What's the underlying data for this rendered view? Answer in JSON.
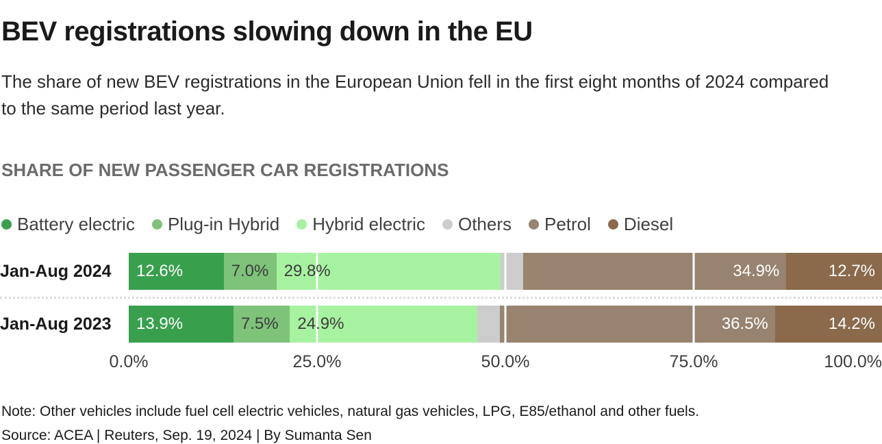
{
  "page": {
    "title": "BEV registrations slowing down in the EU",
    "subtitle": "The share of new BEV registrations in the European Union fell in the first eight months of 2024 compared to the same period last year.",
    "section_header": "SHARE OF NEW PASSENGER CAR REGISTRATIONS",
    "note": "Note: Other vehicles include fuel cell electric vehicles, natural gas vehicles, LPG, E85/ethanol and other fuels.",
    "source": "Source: ACEA | Reuters, Sep. 19, 2024 | By Sumanta Sen"
  },
  "chart_data": {
    "type": "bar",
    "variant": "horizontal-stacked",
    "unit": "%",
    "title": "SHARE OF NEW PASSENGER CAR REGISTRATIONS",
    "categories": [
      "Jan-Aug 2024",
      "Jan-Aug 2023"
    ],
    "series": [
      {
        "name": "Battery electric",
        "color": "#38a04d",
        "values": [
          12.6,
          13.9
        ],
        "label_position": "left",
        "label_color": "#ffffff"
      },
      {
        "name": "Plug-in Hybrid",
        "color": "#7ec379",
        "values": [
          7.0,
          7.5
        ],
        "label_position": "left",
        "label_color": "#3c3c3c"
      },
      {
        "name": "Hybrid electric",
        "color": "#a7f2a1",
        "values": [
          29.8,
          24.9
        ],
        "label_position": "left",
        "label_color": "#3c3c3c"
      },
      {
        "name": "Others",
        "color": "#cccccc",
        "values": [
          3.0,
          3.0
        ],
        "label_position": "none",
        "label_color": "#3c3c3c"
      },
      {
        "name": "Petrol",
        "color": "#97836f",
        "values": [
          34.9,
          36.5
        ],
        "label_position": "right",
        "label_color": "#ffffff"
      },
      {
        "name": "Diesel",
        "color": "#8a6a4a",
        "values": [
          12.7,
          14.2
        ],
        "label_position": "right",
        "label_color": "#ffffff"
      }
    ],
    "x_axis": {
      "range": [
        0,
        100
      ],
      "ticks": [
        {
          "label": "0.0%",
          "pct": 0
        },
        {
          "label": "25.0%",
          "pct": 25
        },
        {
          "label": "50.0%",
          "pct": 50
        },
        {
          "label": "75.0%",
          "pct": 75
        },
        {
          "label": "100.0%",
          "pct": 100
        }
      ]
    },
    "gridlines_pct": [
      25,
      50,
      75
    ],
    "legend_position": "top",
    "grid": "white-overlay"
  }
}
